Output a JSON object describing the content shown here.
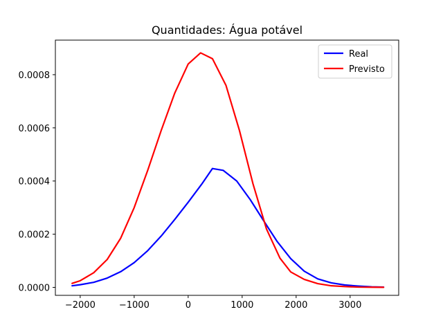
{
  "chart_data": {
    "type": "line",
    "title": "Quantidades: Água potável",
    "xlabel": "",
    "ylabel": "",
    "xlim": [
      -2460,
      3900
    ],
    "ylim": [
      -3e-05,
      0.00093
    ],
    "xticks": [
      -2000,
      -1000,
      0,
      1000,
      2000,
      3000
    ],
    "xtick_labels": [
      "−2000",
      "−1000",
      "0",
      "1000",
      "2000",
      "3000"
    ],
    "yticks": [
      0.0,
      0.0002,
      0.0004,
      0.0006,
      0.0008
    ],
    "ytick_labels": [
      "0.0000",
      "0.0002",
      "0.0004",
      "0.0006",
      "0.0008"
    ],
    "grid": false,
    "legend": "top-right",
    "series": [
      {
        "name": "Real",
        "color": "#0000ff",
        "x": [
          -2150,
          -2000,
          -1750,
          -1500,
          -1250,
          -1000,
          -750,
          -500,
          -250,
          0,
          250,
          450,
          650,
          900,
          1150,
          1400,
          1650,
          1900,
          2150,
          2400,
          2650,
          2900,
          3150,
          3400,
          3620
        ],
        "y": [
          6e-06,
          1e-05,
          1.9e-05,
          3.5e-05,
          5.9e-05,
          9.3e-05,
          0.000138,
          0.000193,
          0.000255,
          0.00032,
          0.000388,
          0.000447,
          0.00044,
          0.0004,
          0.00033,
          0.00025,
          0.000172,
          0.000108,
          6.1e-05,
          3.2e-05,
          1.7e-05,
          9e-06,
          5e-06,
          2e-06,
          1e-06
        ]
      },
      {
        "name": "Previsto",
        "color": "#ff0000",
        "x": [
          -2150,
          -2000,
          -1750,
          -1500,
          -1250,
          -1000,
          -750,
          -500,
          -250,
          0,
          230,
          450,
          700,
          950,
          1200,
          1450,
          1700,
          1900,
          2150,
          2400,
          2650,
          2900,
          3150,
          3400,
          3620
        ],
        "y": [
          1.5e-05,
          2.5e-05,
          5.5e-05,
          0.000105,
          0.000185,
          0.0003,
          0.00044,
          0.00059,
          0.00073,
          0.00084,
          0.000882,
          0.00086,
          0.00076,
          0.00059,
          0.00039,
          0.00022,
          0.00011,
          5.8e-05,
          3e-05,
          1.4e-05,
          6e-06,
          3e-06,
          1e-06,
          5e-07,
          2e-07
        ]
      }
    ]
  }
}
